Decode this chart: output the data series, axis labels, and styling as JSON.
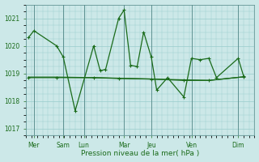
{
  "background_color": "#cce8e8",
  "grid_color": "#99cccc",
  "line_color": "#1a6b1a",
  "marker_color": "#1a6b1a",
  "xlabel": "Pression niveau de la mer( hPa )",
  "xlabel_color": "#1a6b1a",
  "tick_color": "#1a6b1a",
  "ylim": [
    1016.75,
    1021.5
  ],
  "yticks": [
    1017,
    1018,
    1019,
    1020,
    1021
  ],
  "xlim": [
    0,
    21
  ],
  "series1_x": [
    0.2,
    0.7,
    2.8,
    3.4,
    4.5,
    6.2,
    6.8,
    7.3,
    8.5,
    9.0,
    9.6,
    10.2,
    10.8,
    11.5,
    12.0,
    13.0,
    14.5,
    15.2,
    16.0,
    16.8,
    17.5,
    19.5,
    20.0
  ],
  "series1_y": [
    1020.3,
    1020.55,
    1020.0,
    1019.6,
    1017.65,
    1020.0,
    1019.1,
    1019.15,
    1021.0,
    1021.3,
    1019.3,
    1019.25,
    1020.5,
    1019.6,
    1018.4,
    1018.85,
    1018.15,
    1019.55,
    1019.5,
    1019.55,
    1018.85,
    1019.55,
    1018.9
  ],
  "series2_x": [
    0.2,
    2.8,
    6.2,
    8.5,
    11.5,
    14.5,
    16.8,
    20.0
  ],
  "series2_y": [
    1018.85,
    1018.85,
    1018.85,
    1018.82,
    1018.8,
    1018.75,
    1018.75,
    1018.88
  ],
  "series3_x": [
    0.2,
    2.8,
    6.2,
    8.5,
    11.5,
    14.5,
    16.8,
    20.0
  ],
  "series3_y": [
    1018.87,
    1018.87,
    1018.85,
    1018.83,
    1018.8,
    1018.77,
    1018.75,
    1018.88
  ],
  "xtick_positions": [
    0.7,
    3.4,
    5.3,
    9.0,
    11.5,
    15.2,
    19.5
  ],
  "xtick_labels": [
    "Mer",
    "Sam",
    "Lun",
    "Mar",
    "Jeu",
    "Ven",
    "Dim"
  ],
  "vline_positions": [
    0.7,
    3.4,
    5.3,
    9.0,
    11.5,
    15.2,
    19.5
  ]
}
